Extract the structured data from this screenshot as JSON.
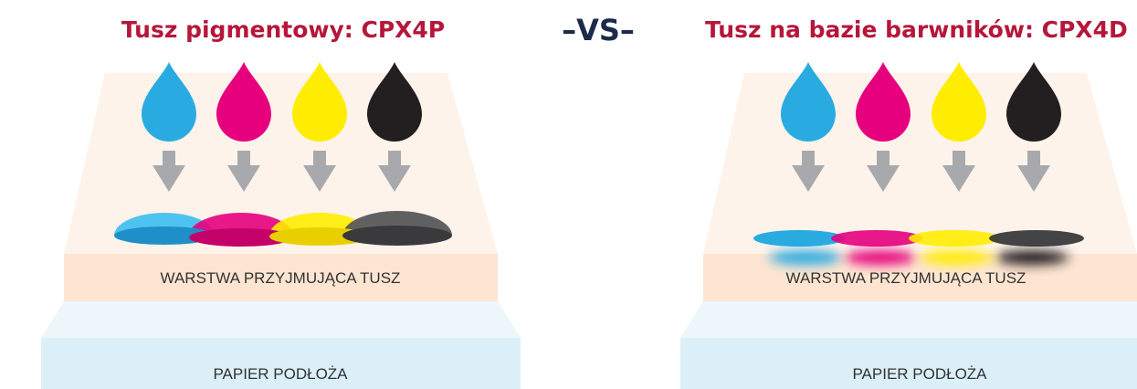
{
  "left": {
    "title": "Tusz pigmentowy: CPX4P",
    "ink_layer": "WARSTWA PRZYJMUJĄCA TUSZ",
    "paper": "PAPIER PODŁOŻA"
  },
  "vs": "–VS–",
  "right": {
    "title": "Tusz na bazie barwników: CPX4D",
    "ink_layer": "WARSTWA PRZYJMUJĄCA TUSZ",
    "paper": "PAPIER PODŁOŻA"
  }
}
